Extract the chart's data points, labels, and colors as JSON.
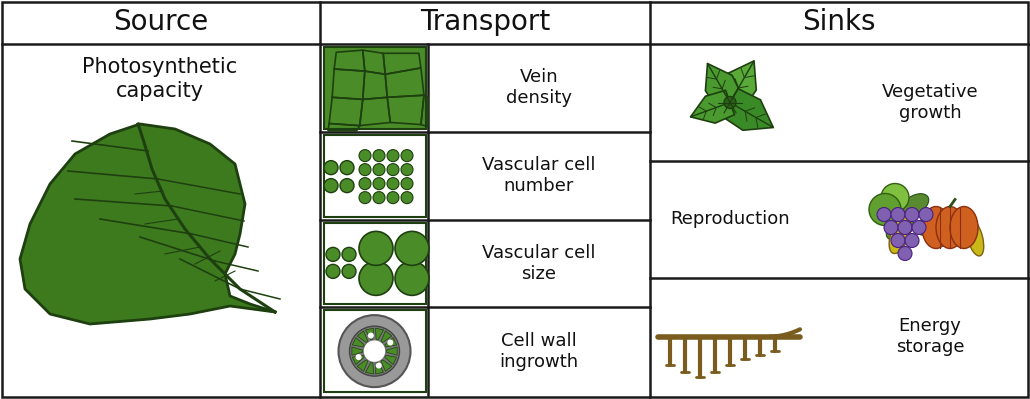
{
  "title_source": "Source",
  "title_transport": "Transport",
  "title_sinks": "Sinks",
  "source_text": "Photosynthetic\ncapacity",
  "transport_items": [
    "Vein\ndensity",
    "Vascular cell\nnumber",
    "Vascular cell\nsize",
    "Cell wall\ningrowth"
  ],
  "sink_items": [
    "Vegetative\ngrowth",
    "Reproduction",
    "Energy\nstorage"
  ],
  "bg_color": "#ffffff",
  "border_color": "#1a1a1a",
  "text_color": "#111111",
  "leaf_fill": "#3d7a1e",
  "leaf_dark": "#1e4010",
  "leaf_mid": "#4e8c28",
  "green_cell": "#4a8c28",
  "green_dark": "#1e4010",
  "gray_outer": "#999999",
  "gray_inner": "#bbbbbb",
  "brown": "#7a5c1e",
  "purple_grape": "#8060b0",
  "orange_pump": "#d06020",
  "yellow_corn": "#c8b818",
  "green_fruit": "#60a030",
  "title_fontsize": 20,
  "label_fontsize": 13,
  "fig_width": 10.3,
  "fig_height": 3.99
}
